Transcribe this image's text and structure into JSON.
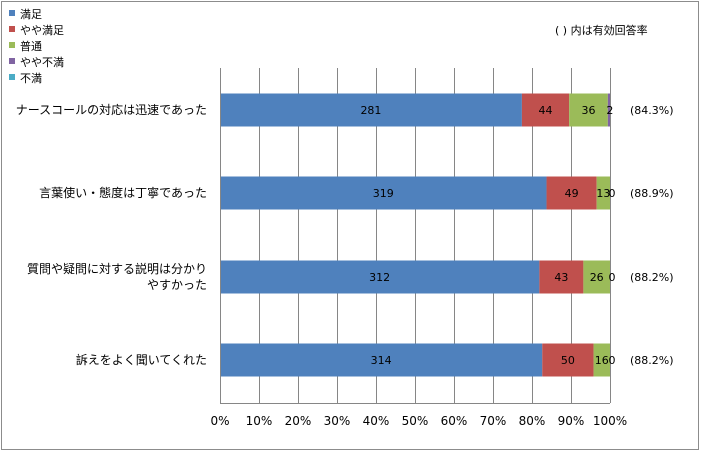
{
  "chart_data": {
    "type": "bar",
    "orientation": "horizontal",
    "stacked": "percent",
    "title": "",
    "xlabel": "",
    "ylabel": "",
    "xlim": [
      0,
      100
    ],
    "xticks": [
      "0%",
      "10%",
      "20%",
      "30%",
      "40%",
      "50%",
      "60%",
      "70%",
      "80%",
      "90%",
      "100%"
    ],
    "grid": "vertical",
    "legend_position": "top-left",
    "note": "( ) 内は有効回答率",
    "categories": [
      "ナースコールの対応は迅速であった",
      "言葉使い・態度は丁寧であった",
      "質問や疑問に対する説明は分かりやすかった",
      "訴えをよく聞いてくれた"
    ],
    "category_display_lines": [
      [
        "ナースコールの対応は迅速であった"
      ],
      [
        "言葉使い・態度は丁寧であった"
      ],
      [
        "質問や疑問に対する説明は分かり",
        "やすかった"
      ],
      [
        "訴えをよく聞いてくれた"
      ]
    ],
    "response_rates": [
      "(84.3%)",
      "(88.9%)",
      "(88.2%)",
      "(88.2%)"
    ],
    "series": [
      {
        "name": "満足",
        "color": "#4f81bd",
        "values": [
          281,
          319,
          312,
          314
        ]
      },
      {
        "name": "やや満足",
        "color": "#c0504d",
        "values": [
          44,
          49,
          43,
          50
        ]
      },
      {
        "name": "普通",
        "color": "#9bbb59",
        "values": [
          36,
          13,
          26,
          16
        ]
      },
      {
        "name": "やや不満",
        "color": "#8064a2",
        "values": [
          2,
          0,
          0,
          0
        ]
      },
      {
        "name": "不満",
        "color": "#4bacc6",
        "values": [
          0,
          0,
          0,
          0
        ]
      }
    ],
    "segment_labels": [
      [
        "281",
        "44",
        "36",
        "2",
        ""
      ],
      [
        "319",
        "49",
        "13",
        "0",
        ""
      ],
      [
        "312",
        "43",
        "26",
        "0",
        ""
      ],
      [
        "314",
        "50",
        "16",
        "0",
        ""
      ]
    ]
  }
}
